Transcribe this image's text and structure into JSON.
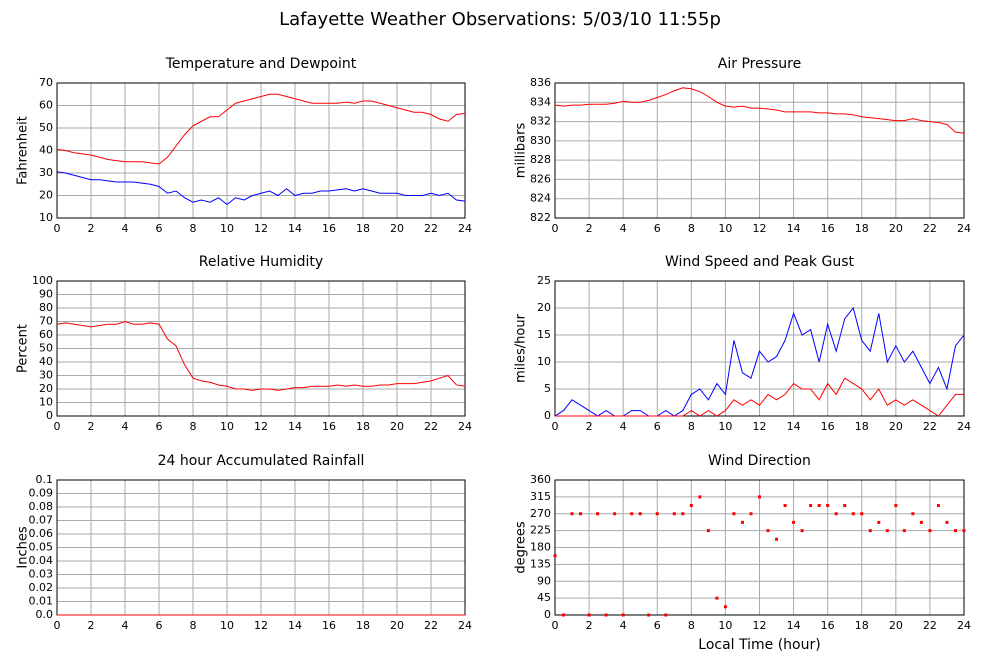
{
  "title": "Lafayette Weather Observations: 5/03/10 11:55p",
  "chart_data": [
    {
      "type": "line",
      "title": "Temperature and Dewpoint",
      "ylabel": "Fahrenheit",
      "x": [
        0,
        0.5,
        1,
        1.5,
        2,
        2.5,
        3,
        3.5,
        4,
        4.5,
        5,
        5.5,
        6,
        6.5,
        7,
        7.5,
        8,
        8.5,
        9,
        9.5,
        10,
        10.5,
        11,
        11.5,
        12,
        12.5,
        13,
        13.5,
        14,
        14.5,
        15,
        15.5,
        16,
        16.5,
        17,
        17.5,
        18,
        18.5,
        19,
        19.5,
        20,
        20.5,
        21,
        21.5,
        22,
        22.5,
        23,
        23.5,
        24
      ],
      "series": [
        {
          "color": "#ff0000",
          "values": [
            40.5,
            40,
            39,
            38.5,
            38,
            37,
            36,
            35.5,
            35,
            35,
            35,
            34.5,
            34,
            37,
            42,
            47,
            51,
            53,
            55,
            55,
            58,
            61,
            62,
            63,
            64,
            65,
            65,
            64,
            63,
            62,
            61,
            61,
            61,
            61,
            61.5,
            61,
            62,
            62,
            61,
            60,
            59,
            58,
            57,
            57,
            56,
            54,
            53,
            56,
            56.5
          ]
        },
        {
          "color": "#0000ff",
          "values": [
            30.5,
            30,
            29,
            28,
            27,
            27,
            26.5,
            26,
            26,
            26,
            25.5,
            25,
            24,
            21,
            22,
            19,
            17,
            18,
            17,
            19,
            16,
            19,
            18,
            20,
            21,
            22,
            20,
            23,
            20,
            21,
            21,
            22,
            22,
            22.5,
            23,
            22,
            23,
            22,
            21,
            21,
            21,
            20,
            20,
            20,
            21,
            20,
            21,
            18,
            17.5
          ]
        }
      ],
      "xlim": [
        0,
        24
      ],
      "xticks": [
        0,
        2,
        4,
        6,
        8,
        10,
        12,
        14,
        16,
        18,
        20,
        22,
        24
      ],
      "ylim": [
        10,
        70
      ],
      "yticks": [
        10,
        20,
        30,
        40,
        50,
        60,
        70
      ],
      "grid": true
    },
    {
      "type": "line",
      "title": "Air Pressure",
      "ylabel": "millibars",
      "x": [
        0,
        0.5,
        1,
        1.5,
        2,
        2.5,
        3,
        3.5,
        4,
        4.5,
        5,
        5.5,
        6,
        6.5,
        7,
        7.5,
        8,
        8.5,
        9,
        9.5,
        10,
        10.5,
        11,
        11.5,
        12,
        12.5,
        13,
        13.5,
        14,
        14.5,
        15,
        15.5,
        16,
        16.5,
        17,
        17.5,
        18,
        18.5,
        19,
        19.5,
        20,
        20.5,
        21,
        21.5,
        22,
        22.5,
        23,
        23.5,
        24
      ],
      "series": [
        {
          "color": "#ff0000",
          "values": [
            833.7,
            833.6,
            833.7,
            833.7,
            833.8,
            833.8,
            833.8,
            833.9,
            834.1,
            834.0,
            834.0,
            834.2,
            834.5,
            834.8,
            835.2,
            835.5,
            835.4,
            835.1,
            834.6,
            834.0,
            833.6,
            833.5,
            833.6,
            833.4,
            833.4,
            833.3,
            833.2,
            833.0,
            833.0,
            833.0,
            833.0,
            832.9,
            832.9,
            832.8,
            832.8,
            832.7,
            832.5,
            832.4,
            832.3,
            832.2,
            832.1,
            832.1,
            832.3,
            832.1,
            832.0,
            831.9,
            831.7,
            830.9,
            830.8
          ]
        }
      ],
      "xlim": [
        0,
        24
      ],
      "xticks": [
        0,
        2,
        4,
        6,
        8,
        10,
        12,
        14,
        16,
        18,
        20,
        22,
        24
      ],
      "ylim": [
        822,
        836
      ],
      "yticks": [
        822,
        824,
        826,
        828,
        830,
        832,
        834,
        836
      ],
      "grid": true
    },
    {
      "type": "line",
      "title": "Relative Humidity",
      "ylabel": "Percent",
      "x": [
        0,
        0.5,
        1,
        1.5,
        2,
        2.5,
        3,
        3.5,
        4,
        4.5,
        5,
        5.5,
        6,
        6.5,
        7,
        7.5,
        8,
        8.5,
        9,
        9.5,
        10,
        10.5,
        11,
        11.5,
        12,
        12.5,
        13,
        13.5,
        14,
        14.5,
        15,
        15.5,
        16,
        16.5,
        17,
        17.5,
        18,
        18.5,
        19,
        19.5,
        20,
        20.5,
        21,
        21.5,
        22,
        22.5,
        23,
        23.5,
        24
      ],
      "series": [
        {
          "color": "#ff0000",
          "values": [
            68,
            69,
            68,
            67,
            66,
            67,
            68,
            68,
            70,
            68,
            68,
            69,
            68,
            57,
            52,
            38,
            28,
            26,
            25,
            23,
            22,
            20,
            20,
            19,
            20,
            20,
            19,
            20,
            21,
            21,
            22,
            22,
            22,
            23,
            22,
            23,
            22,
            22,
            23,
            23,
            24,
            24,
            24,
            25,
            26,
            28,
            30,
            23,
            22
          ]
        }
      ],
      "xlim": [
        0,
        24
      ],
      "xticks": [
        0,
        2,
        4,
        6,
        8,
        10,
        12,
        14,
        16,
        18,
        20,
        22,
        24
      ],
      "ylim": [
        0,
        100
      ],
      "yticks": [
        0,
        10,
        20,
        30,
        40,
        50,
        60,
        70,
        80,
        90,
        100
      ],
      "grid": true
    },
    {
      "type": "line",
      "title": "Wind Speed and Peak Gust",
      "ylabel": "miles/hour",
      "x": [
        0,
        0.5,
        1,
        1.5,
        2,
        2.5,
        3,
        3.5,
        4,
        4.5,
        5,
        5.5,
        6,
        6.5,
        7,
        7.5,
        8,
        8.5,
        9,
        9.5,
        10,
        10.5,
        11,
        11.5,
        12,
        12.5,
        13,
        13.5,
        14,
        14.5,
        15,
        15.5,
        16,
        16.5,
        17,
        17.5,
        18,
        18.5,
        19,
        19.5,
        20,
        20.5,
        21,
        21.5,
        22,
        22.5,
        23,
        23.5,
        24
      ],
      "series": [
        {
          "color": "#0000ff",
          "values": [
            0,
            1,
            3,
            2,
            1,
            0,
            1,
            0,
            0,
            1,
            1,
            0,
            0,
            1,
            0,
            1,
            4,
            5,
            3,
            6,
            4,
            14,
            8,
            7,
            12,
            10,
            11,
            14,
            19,
            15,
            16,
            10,
            17,
            12,
            18,
            20,
            14,
            12,
            19,
            10,
            13,
            10,
            12,
            9,
            6,
            9,
            5,
            13,
            15
          ]
        },
        {
          "color": "#ff0000",
          "values": [
            0,
            0,
            0,
            0,
            0,
            0,
            0,
            0,
            0,
            0,
            0,
            0,
            0,
            0,
            0,
            0,
            1,
            0,
            1,
            0,
            1,
            3,
            2,
            3,
            2,
            4,
            3,
            4,
            6,
            5,
            5,
            3,
            6,
            4,
            7,
            6,
            5,
            3,
            5,
            2,
            3,
            2,
            3,
            2,
            1,
            0,
            2,
            4,
            4
          ]
        }
      ],
      "xlim": [
        0,
        24
      ],
      "xticks": [
        0,
        2,
        4,
        6,
        8,
        10,
        12,
        14,
        16,
        18,
        20,
        22,
        24
      ],
      "ylim": [
        0,
        25
      ],
      "yticks": [
        0,
        5,
        10,
        15,
        20,
        25
      ],
      "grid": true
    },
    {
      "type": "line",
      "title": "24 hour Accumulated Rainfall",
      "ylabel": "Inches",
      "x": [
        0,
        24
      ],
      "series": [
        {
          "color": "#ff0000",
          "values": [
            0,
            0
          ]
        }
      ],
      "xlim": [
        0,
        24
      ],
      "xticks": [
        0,
        2,
        4,
        6,
        8,
        10,
        12,
        14,
        16,
        18,
        20,
        22,
        24
      ],
      "ylim": [
        0,
        0.1
      ],
      "yticks": [
        {
          "value": 0,
          "label": "0.0"
        },
        0.01,
        0.02,
        0.03,
        0.04,
        0.05,
        0.06,
        0.07,
        0.08,
        0.09,
        0.1
      ],
      "grid": true
    },
    {
      "type": "scatter",
      "title": "Wind Direction",
      "ylabel": "degrees",
      "xlabel": "Local Time (hour)",
      "x": [
        0,
        0.5,
        1,
        1.5,
        2,
        2.5,
        3,
        3.5,
        4,
        4.5,
        5,
        5.5,
        6,
        6.5,
        7,
        7.5,
        8,
        8.5,
        9,
        9.5,
        10,
        10.5,
        11,
        11.5,
        12,
        12.5,
        13,
        13.5,
        14,
        14.5,
        15,
        15.5,
        16,
        16.5,
        17,
        17.5,
        18,
        18.5,
        19,
        19.5,
        20,
        20.5,
        21,
        21.5,
        22,
        22.5,
        23,
        23.5,
        24
      ],
      "series": [
        {
          "color": "#ff0000",
          "values": [
            158,
            0,
            270,
            270,
            0,
            270,
            0,
            270,
            0,
            270,
            270,
            0,
            270,
            0,
            270,
            270,
            292,
            315,
            225,
            45,
            22,
            270,
            247,
            270,
            315,
            225,
            202,
            292,
            247,
            225,
            292,
            292,
            292,
            270,
            292,
            270,
            270,
            225,
            247,
            225,
            292,
            225,
            270,
            247,
            225,
            292,
            247,
            225,
            225
          ]
        }
      ],
      "xlim": [
        0,
        24
      ],
      "xticks": [
        0,
        2,
        4,
        6,
        8,
        10,
        12,
        14,
        16,
        18,
        20,
        22,
        24
      ],
      "ylim": [
        0,
        360
      ],
      "yticks": [
        0,
        45,
        90,
        135,
        180,
        225,
        270,
        315,
        360
      ],
      "grid": true
    }
  ]
}
